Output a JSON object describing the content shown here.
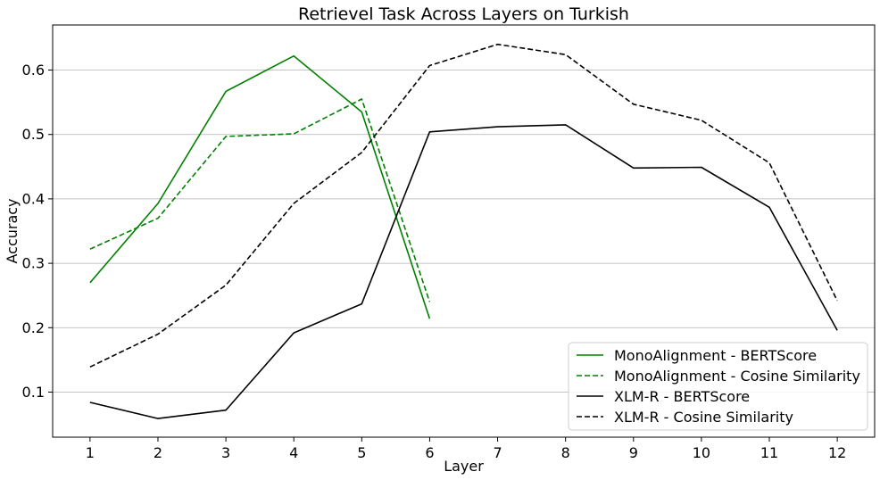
{
  "chart_data": {
    "type": "line",
    "title": "Retrievel Task Across Layers on Turkish",
    "xlabel": "Layer",
    "ylabel": "Accuracy",
    "x": [
      1,
      2,
      3,
      4,
      5,
      6,
      7,
      8,
      9,
      10,
      11,
      12
    ],
    "x_tick_labels": [
      "1",
      "2",
      "3",
      "4",
      "5",
      "6",
      "7",
      "8",
      "9",
      "10",
      "11",
      "12"
    ],
    "xlim": [
      0.45,
      12.55
    ],
    "ylim": [
      0.03,
      0.67
    ],
    "y_ticks": [
      0.1,
      0.2,
      0.3,
      0.4,
      0.5,
      0.6
    ],
    "y_tick_labels": [
      "0.1",
      "0.2",
      "0.3",
      "0.4",
      "0.5",
      "0.6"
    ],
    "grid": "horizontal",
    "legend_position": "lower-right",
    "series": [
      {
        "name": "MonoAlignment - BERTScore",
        "color": "#008000",
        "style": "solid",
        "x": [
          1,
          2,
          3,
          4,
          5,
          6
        ],
        "values": [
          0.27,
          0.393,
          0.567,
          0.622,
          0.535,
          0.214
        ]
      },
      {
        "name": "MonoAlignment - Cosine Similarity",
        "color": "#008000",
        "style": "dashed",
        "x": [
          1,
          2,
          3,
          4,
          5,
          6
        ],
        "values": [
          0.322,
          0.37,
          0.497,
          0.501,
          0.555,
          0.24
        ]
      },
      {
        "name": "XLM-R - BERTScore",
        "color": "#000000",
        "style": "solid",
        "x": [
          1,
          2,
          3,
          4,
          5,
          6,
          7,
          8,
          9,
          10,
          11,
          12
        ],
        "values": [
          0.084,
          0.059,
          0.072,
          0.192,
          0.237,
          0.504,
          0.512,
          0.515,
          0.448,
          0.449,
          0.387,
          0.196
        ]
      },
      {
        "name": "XLM-R - Cosine Similarity",
        "color": "#000000",
        "style": "dashed",
        "x": [
          1,
          2,
          3,
          4,
          5,
          6,
          7,
          8,
          9,
          10,
          11,
          12
        ],
        "values": [
          0.139,
          0.19,
          0.266,
          0.393,
          0.472,
          0.607,
          0.64,
          0.624,
          0.547,
          0.522,
          0.456,
          0.242
        ]
      }
    ]
  }
}
